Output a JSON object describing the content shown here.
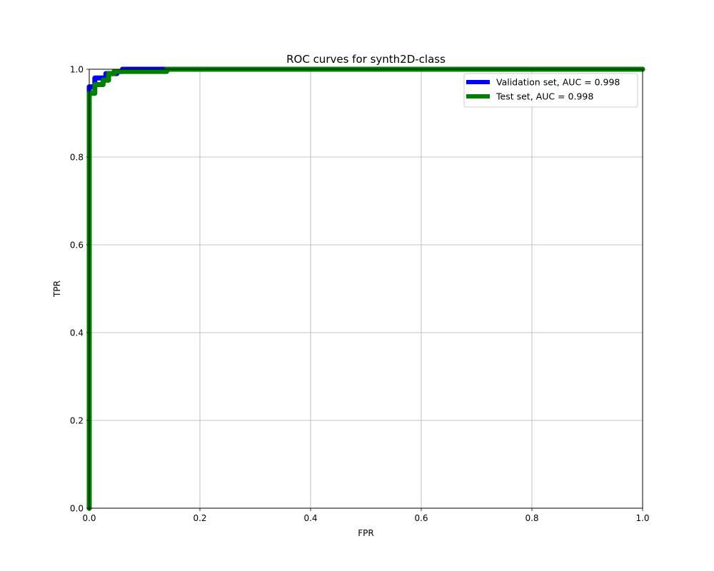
{
  "chart_data": {
    "type": "line",
    "title": "ROC curves for synth2D-class",
    "xlabel": "FPR",
    "ylabel": "TPR",
    "xlim": [
      0,
      1
    ],
    "ylim": [
      0,
      1
    ],
    "grid": true,
    "legend_position": "top-right",
    "x_ticks": [
      0.0,
      0.2,
      0.4,
      0.6,
      0.8,
      1.0
    ],
    "y_ticks": [
      0.0,
      0.2,
      0.4,
      0.6,
      0.8,
      1.0
    ],
    "x_tick_labels": [
      "0.0",
      "0.2",
      "0.4",
      "0.6",
      "0.8",
      "1.0"
    ],
    "y_tick_labels": [
      "0.0",
      "0.2",
      "0.4",
      "0.6",
      "0.8",
      "1.0"
    ],
    "series": [
      {
        "name": "Validation set, AUC = 0.998",
        "color": "#0000ff",
        "points": [
          [
            0,
            0
          ],
          [
            0,
            0.96
          ],
          [
            0.01,
            0.96
          ],
          [
            0.01,
            0.98
          ],
          [
            0.03,
            0.98
          ],
          [
            0.03,
            0.99
          ],
          [
            0.05,
            0.99
          ],
          [
            0.05,
            0.995
          ],
          [
            0.06,
            0.995
          ],
          [
            0.06,
            1.0
          ],
          [
            1.0,
            1.0
          ]
        ]
      },
      {
        "name": "Test set, AUC = 0.998",
        "color": "#008000",
        "points": [
          [
            0,
            0
          ],
          [
            0,
            0.945
          ],
          [
            0.01,
            0.945
          ],
          [
            0.01,
            0.965
          ],
          [
            0.025,
            0.965
          ],
          [
            0.025,
            0.975
          ],
          [
            0.035,
            0.975
          ],
          [
            0.035,
            0.99
          ],
          [
            0.045,
            0.99
          ],
          [
            0.045,
            0.995
          ],
          [
            0.14,
            0.995
          ],
          [
            0.14,
            1.0
          ],
          [
            1.0,
            1.0
          ]
        ]
      }
    ]
  }
}
